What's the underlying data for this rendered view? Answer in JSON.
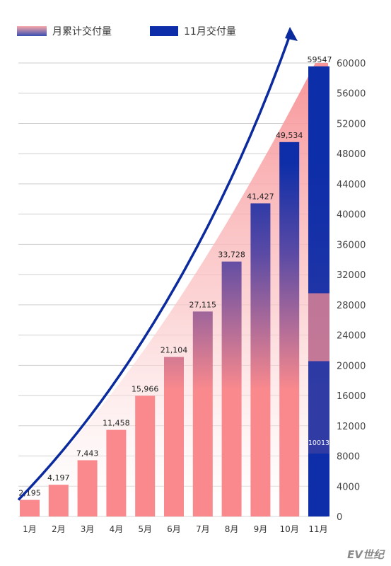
{
  "legend": {
    "cumulative_label": "月累计交付量",
    "monthly_label": "11月交付量"
  },
  "watermark": "EV世纪",
  "chart_data": {
    "type": "bar",
    "categories": [
      "1月",
      "2月",
      "3月",
      "4月",
      "5月",
      "6月",
      "7月",
      "8月",
      "9月",
      "10月",
      "11月"
    ],
    "series": [
      {
        "name": "月累计交付量",
        "values": [
          2195,
          4197,
          7443,
          11458,
          15966,
          21104,
          27115,
          33728,
          41427,
          49534,
          59547
        ]
      },
      {
        "name": "11月交付量",
        "values": [
          null,
          null,
          null,
          null,
          null,
          null,
          null,
          null,
          null,
          null,
          10013
        ]
      }
    ],
    "data_labels": [
      "2,195",
      "4,197",
      "7,443",
      "11,458",
      "15,966",
      "21,104",
      "27,115",
      "33,728",
      "41,427",
      "49,534",
      "59547"
    ],
    "monthly_label": "10013",
    "y_ticks": [
      0,
      4000,
      8000,
      12000,
      16000,
      20000,
      24000,
      28000,
      32000,
      36000,
      40000,
      44000,
      48000,
      52000,
      56000,
      60000
    ],
    "ylim": [
      0,
      60000
    ],
    "y_axis_side": "right",
    "grid": true,
    "legend_position": "top-left",
    "colors": {
      "bar_top": "#0d2ea8",
      "bar_bottom": "#f9898d",
      "area_top": "#f78f93",
      "area_bottom": "#ffffff",
      "arrow": "#0b2a9e",
      "grid": "#cfcfcf"
    }
  }
}
